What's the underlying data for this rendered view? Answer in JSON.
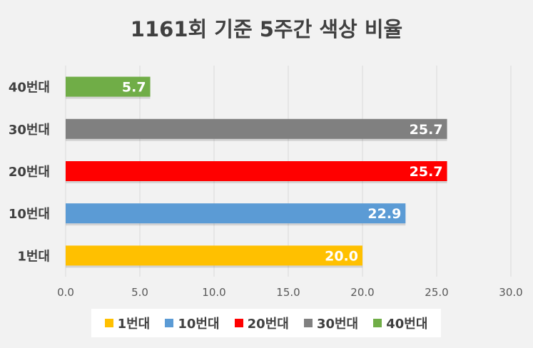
{
  "chart_data": {
    "type": "bar",
    "orientation": "horizontal",
    "title": "1161회 기준 5주간 색상 비율",
    "categories": [
      "1번대",
      "10번대",
      "20번대",
      "30번대",
      "40번대"
    ],
    "values": [
      20.0,
      22.9,
      25.7,
      25.7,
      5.7
    ],
    "value_labels": [
      "20.0",
      "22.9",
      "25.7",
      "25.7",
      "5.7"
    ],
    "colors": [
      "#ffc000",
      "#5b9bd5",
      "#ff0000",
      "#808080",
      "#70ad47"
    ],
    "xlim": [
      0,
      30
    ],
    "x_ticks": [
      "0.0",
      "5.0",
      "10.0",
      "15.0",
      "20.0",
      "25.0",
      "30.0"
    ],
    "grid": true,
    "legend_position": "bottom",
    "legend": [
      "1번대",
      "10번대",
      "20번대",
      "30번대",
      "40번대"
    ]
  }
}
